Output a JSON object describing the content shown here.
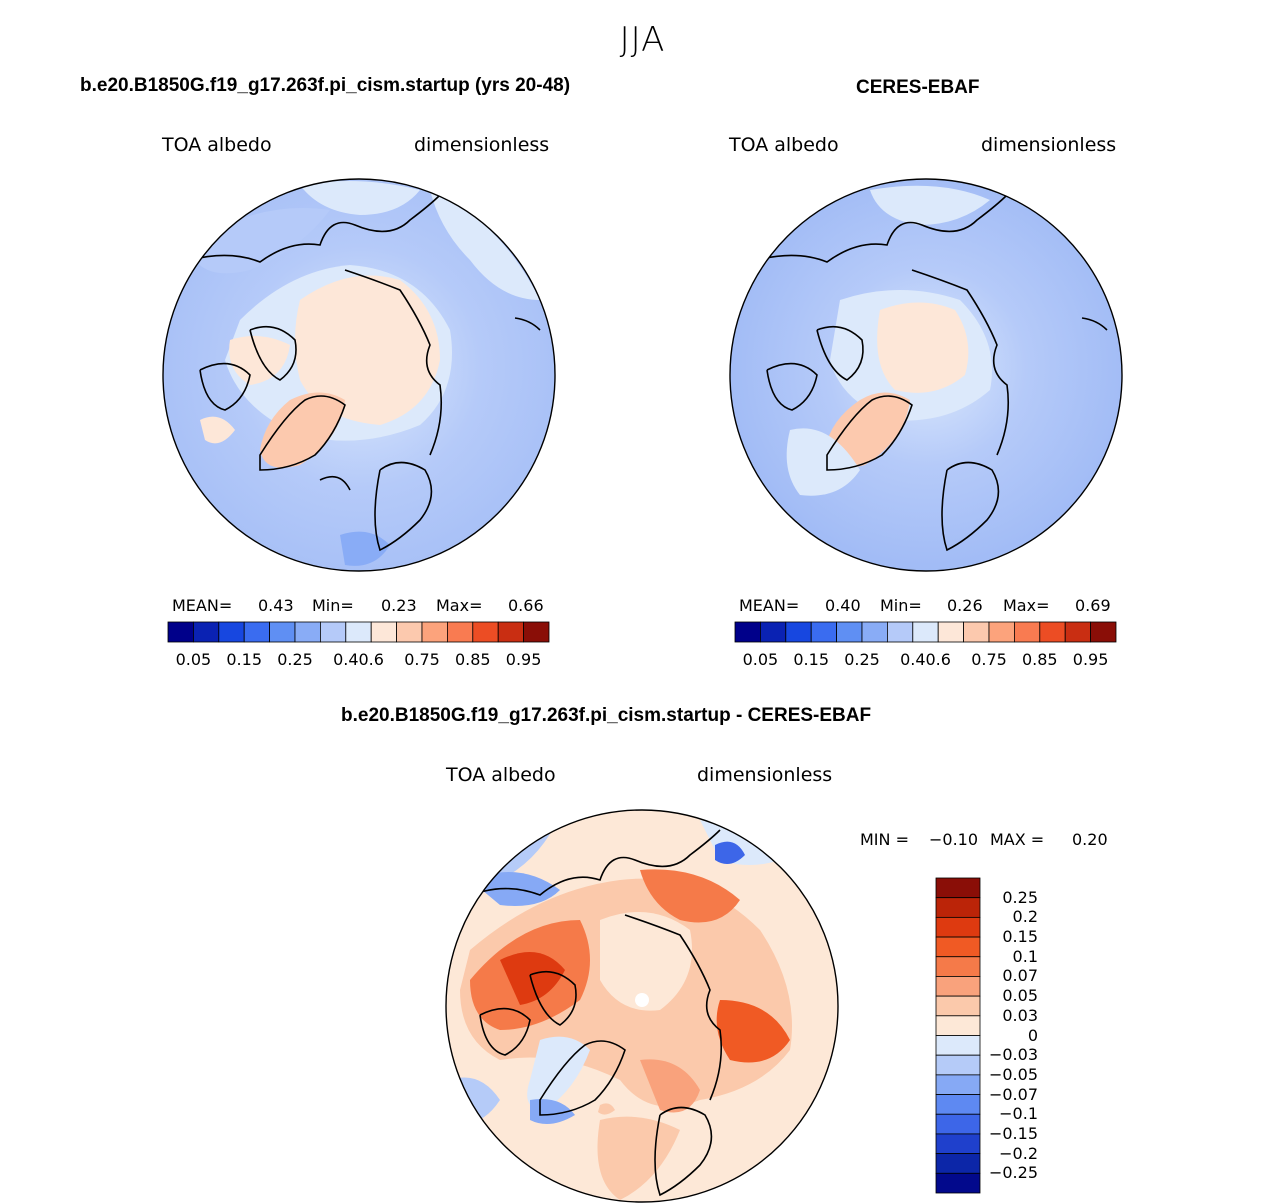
{
  "season": "JJA",
  "palette_abs": [
    "#00008a",
    "#0a22b3",
    "#1747e0",
    "#3a6cf0",
    "#5f8ff3",
    "#89acf6",
    "#b5caf9",
    "#dce9fb",
    "#fde7d8",
    "#fcc9ae",
    "#fca37c",
    "#f97b51",
    "#ec4d24",
    "#c92e12",
    "#8a0e07"
  ],
  "palette_diff": [
    "#8a0e07",
    "#bb2408",
    "#de3a10",
    "#f05a24",
    "#f57a49",
    "#f9a27c",
    "#fbc9ab",
    "#fde8d7",
    "#dce9fb",
    "#b5cbf8",
    "#86a9f5",
    "#5e89f2",
    "#3d66e8",
    "#1f40cc",
    "#0c26a8",
    "#02098c"
  ],
  "panels": {
    "model": {
      "title": "b.e20.B1850G.f19_g17.263f.pi_cism.startup (yrs 20-48)",
      "left_label": "TOA albedo",
      "right_label": "dimensionless",
      "stats": {
        "mean_label": "MEAN=",
        "mean": "0.43",
        "min_label": "Min=",
        "min": "0.23",
        "max_label": "Max=",
        "max": "0.66"
      },
      "ticks": [
        "0.05",
        "0.15",
        "0.25",
        "0.4",
        "0.6",
        "0.75",
        "0.85",
        "0.95"
      ]
    },
    "obs": {
      "title": "CERES-EBAF",
      "left_label": "TOA albedo",
      "right_label": "dimensionless",
      "stats": {
        "mean_label": "MEAN=",
        "mean": "0.40",
        "min_label": "Min=",
        "min": "0.26",
        "max_label": "Max=",
        "max": "0.69"
      },
      "ticks": [
        "0.05",
        "0.15",
        "0.25",
        "0.4",
        "0.6",
        "0.75",
        "0.85",
        "0.95"
      ]
    },
    "diff": {
      "title": "b.e20.B1850G.f19_g17.263f.pi_cism.startup - CERES-EBAF",
      "left_label": "TOA albedo",
      "right_label": "dimensionless",
      "stats": {
        "min_label": "MIN =",
        "min": "−0.10",
        "max_label": "MAX =",
        "max": "0.20"
      },
      "ticks": [
        "0.25",
        "0.2",
        "0.15",
        "0.1",
        "0.07",
        "0.05",
        "0.03",
        "0",
        "−0.03",
        "−0.05",
        "−0.07",
        "−0.1",
        "−0.15",
        "−0.2",
        "−0.25"
      ]
    }
  },
  "chart_data": [
    {
      "type": "heatmap",
      "projection": "north polar stereographic",
      "title": "b.e20.B1850G.f19_g17.263f.pi_cism.startup (yrs 20-48)",
      "variable": "TOA albedo",
      "units": "dimensionless",
      "stats": {
        "mean": 0.43,
        "min": 0.23,
        "max": 0.66
      },
      "contour_levels": [
        0.05,
        0.1,
        0.15,
        0.2,
        0.25,
        0.3,
        0.4,
        0.5,
        0.6,
        0.7,
        0.75,
        0.8,
        0.85,
        0.9,
        0.95
      ]
    },
    {
      "type": "heatmap",
      "projection": "north polar stereographic",
      "title": "CERES-EBAF",
      "variable": "TOA albedo",
      "units": "dimensionless",
      "stats": {
        "mean": 0.4,
        "min": 0.26,
        "max": 0.69
      },
      "contour_levels": [
        0.05,
        0.1,
        0.15,
        0.2,
        0.25,
        0.3,
        0.4,
        0.5,
        0.6,
        0.7,
        0.75,
        0.8,
        0.85,
        0.9,
        0.95
      ]
    },
    {
      "type": "heatmap",
      "projection": "north polar stereographic",
      "title": "b.e20.B1850G.f19_g17.263f.pi_cism.startup - CERES-EBAF",
      "variable": "TOA albedo",
      "units": "dimensionless",
      "stats": {
        "min": -0.1,
        "max": 0.2
      },
      "contour_levels": [
        -0.25,
        -0.2,
        -0.15,
        -0.1,
        -0.07,
        -0.05,
        -0.03,
        0,
        0.03,
        0.05,
        0.07,
        0.1,
        0.15,
        0.2,
        0.25
      ]
    }
  ]
}
